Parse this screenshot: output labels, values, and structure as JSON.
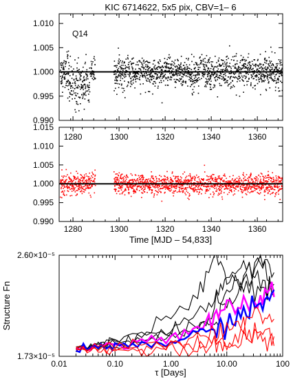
{
  "chart_data": [
    {
      "type": "scatter",
      "title": "KIC 6714622,  5x5 pix, CBV=1– 6",
      "annotation": "Q14",
      "xlim": [
        1274,
        1371
      ],
      "ylim": [
        0.99,
        1.012
      ],
      "x_ticks": [
        "1280",
        "1300",
        "1320",
        "1340",
        "1360"
      ],
      "x_tick_values": [
        1280,
        1300,
        1320,
        1340,
        1360
      ],
      "y_ticks": [
        "1.010",
        "1.005",
        "1.000",
        "0.995",
        "0.990"
      ],
      "y_tick_values": [
        1.01,
        1.005,
        1.0,
        0.995,
        0.99
      ],
      "series": [
        {
          "color": "#000000",
          "x_range": [
            1274,
            1371
          ],
          "gap": [
            1289.5,
            1297.5
          ],
          "center": 1.0,
          "scatter": 0.0026
        }
      ],
      "reference_line": 1.0
    },
    {
      "type": "scatter",
      "xlabel": "Time [MJD – 54,833]",
      "xlim": [
        1274,
        1371
      ],
      "ylim": [
        0.99,
        1.015
      ],
      "x_ticks": [
        "1280",
        "1300",
        "1320",
        "1340",
        "1360"
      ],
      "x_tick_values": [
        1280,
        1300,
        1320,
        1340,
        1360
      ],
      "y_ticks": [
        "1.015",
        "1.010",
        "1.005",
        "1.000",
        "0.995",
        "0.990"
      ],
      "y_tick_values": [
        1.015,
        1.01,
        1.005,
        1.0,
        0.995,
        0.99
      ],
      "series": [
        {
          "color": "#ff0000",
          "x_range": [
            1274,
            1371
          ],
          "gap": [
            1289.5,
            1297.5
          ],
          "center": 1.0,
          "scatter": 0.0022
        }
      ],
      "reference_line": 1.0
    },
    {
      "type": "line",
      "xlabel": "τ [Days]",
      "ylabel": "Structure Fn",
      "x_scale": "log",
      "xlim": [
        0.01,
        100
      ],
      "ylim": [
        1.73e-05,
        2.6e-05
      ],
      "x_ticks": [
        "0.01",
        "0.10",
        "1.00",
        "10.00",
        "100"
      ],
      "x_tick_values": [
        0.01,
        0.1,
        1,
        10,
        100
      ],
      "y_ticks": [
        "2.60×10⁻⁵",
        "1.73×10⁻⁵"
      ],
      "y_tick_values": [
        2.6e-05,
        1.73e-05
      ],
      "series": [
        {
          "color": "#000000",
          "x": [
            0.02,
            0.05,
            0.1,
            0.3,
            1,
            3,
            6,
            10,
            20,
            40,
            70
          ],
          "y": [
            1.8e-05,
            1.85e-05,
            1.88e-05,
            1.93e-05,
            2.05e-05,
            2.25e-05,
            2.58e-05,
            2.4e-05,
            2.35e-05,
            2.55e-05,
            2.45e-05
          ]
        },
        {
          "color": "#000000",
          "x": [
            0.02,
            0.05,
            0.1,
            0.3,
            1,
            3,
            6,
            10,
            20,
            40,
            70
          ],
          "y": [
            1.8e-05,
            1.83e-05,
            1.85e-05,
            1.88e-05,
            1.98e-05,
            2.1e-05,
            2.2e-05,
            2.4e-05,
            2.5e-05,
            2.4e-05,
            2.3e-05
          ]
        },
        {
          "color": "#000000",
          "x": [
            0.02,
            0.05,
            0.1,
            0.3,
            1,
            3,
            6,
            10,
            20,
            40,
            70
          ],
          "y": [
            1.8e-05,
            1.82e-05,
            1.84e-05,
            1.86e-05,
            1.92e-05,
            2e-05,
            2.15e-05,
            2.3e-05,
            2.4e-05,
            2.55e-05,
            2.35e-05
          ]
        },
        {
          "color": "#000000",
          "x": [
            0.02,
            0.05,
            0.1,
            0.3,
            1,
            3,
            6,
            10,
            20,
            40,
            70
          ],
          "y": [
            1.8e-05,
            1.81e-05,
            1.83e-05,
            1.85e-05,
            1.9e-05,
            1.95e-05,
            2.05e-05,
            2.2e-05,
            2.3e-05,
            2.4e-05,
            2.25e-05
          ]
        },
        {
          "color": "#ff00ff",
          "x": [
            0.02,
            0.05,
            0.1,
            0.3,
            1,
            3,
            6,
            10,
            20,
            40,
            70
          ],
          "y": [
            1.8e-05,
            1.82e-05,
            1.83e-05,
            1.86e-05,
            1.9e-05,
            1.96e-05,
            2.03e-05,
            2.12e-05,
            2.18e-05,
            2.22e-05,
            2.24e-05
          ]
        },
        {
          "color": "#0000ff",
          "x": [
            0.02,
            0.05,
            0.1,
            0.3,
            1,
            3,
            6,
            10,
            20,
            40,
            70
          ],
          "y": [
            1.8e-05,
            1.8e-05,
            1.82e-05,
            1.83e-05,
            1.86e-05,
            1.9e-05,
            1.95e-05,
            2.02e-05,
            2.1e-05,
            2.15e-05,
            2.3e-05
          ]
        },
        {
          "color": "#ff0000",
          "x": [
            0.02,
            0.05,
            0.1,
            0.3,
            1,
            3,
            6,
            10,
            20,
            40,
            70
          ],
          "y": [
            1.8e-05,
            1.81e-05,
            1.82e-05,
            1.83e-05,
            1.85e-05,
            1.88e-05,
            1.92e-05,
            1.98e-05,
            2.05e-05,
            2.1e-05,
            2.05e-05
          ]
        },
        {
          "color": "#ff0000",
          "x": [
            0.02,
            0.05,
            0.1,
            0.3,
            1,
            3,
            6,
            10,
            20,
            40,
            70
          ],
          "y": [
            1.8e-05,
            1.79e-05,
            1.8e-05,
            1.8e-05,
            1.82e-05,
            1.83e-05,
            1.85e-05,
            1.88e-05,
            1.93e-05,
            1.95e-05,
            1.9e-05
          ]
        },
        {
          "color": "#ff0000",
          "x": [
            0.02,
            0.05,
            0.1,
            0.3,
            1,
            3,
            6,
            10,
            20,
            40,
            70
          ],
          "y": [
            1.8e-05,
            1.79e-05,
            1.78e-05,
            1.78e-05,
            1.79e-05,
            1.8e-05,
            1.82e-05,
            1.84e-05,
            1.86e-05,
            1.9e-05,
            1.82e-05
          ]
        }
      ]
    }
  ]
}
